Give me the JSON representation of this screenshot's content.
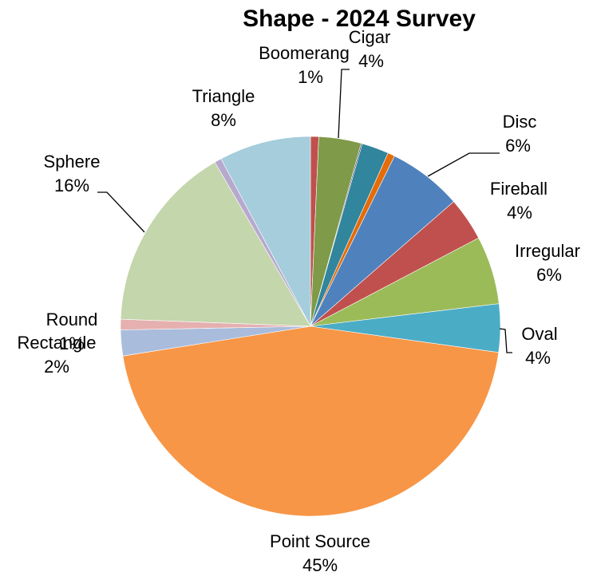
{
  "chart_data": {
    "type": "pie",
    "title": "Shape - 2024 Survey",
    "slices": [
      {
        "label": "Boomerang",
        "value": 0.7,
        "pct_label": "1%",
        "color": "#C0504D"
      },
      {
        "label": "Cigar",
        "value": 3.6,
        "pct_label": "4%",
        "color": "#7F9A48"
      },
      {
        "label": "",
        "value": 0.1,
        "pct_label": "",
        "color": "#4A3A5E"
      },
      {
        "label": "",
        "value": 2.3,
        "pct_label": "",
        "color": "#31859C"
      },
      {
        "label": "",
        "value": 0.6,
        "pct_label": "",
        "color": "#E46C0A"
      },
      {
        "label": "Disc",
        "value": 6.3,
        "pct_label": "6%",
        "color": "#4F81BD"
      },
      {
        "label": "Fireball",
        "value": 3.7,
        "pct_label": "4%",
        "color": "#C0504D"
      },
      {
        "label": "Irregular",
        "value": 5.8,
        "pct_label": "6%",
        "color": "#9BBB59"
      },
      {
        "label": "Oval",
        "value": 4.1,
        "pct_label": "4%",
        "color": "#4BACC6"
      },
      {
        "label": "Point Source",
        "value": 45.3,
        "pct_label": "45%",
        "color": "#F79646"
      },
      {
        "label": "Rectangle",
        "value": 2.2,
        "pct_label": "2%",
        "color": "#A9BCDC"
      },
      {
        "label": "Round",
        "value": 0.9,
        "pct_label": "1%",
        "color": "#E6B0B0"
      },
      {
        "label": "Sphere",
        "value": 16.0,
        "pct_label": "16%",
        "color": "#C4D6AB"
      },
      {
        "label": "",
        "value": 0.6,
        "pct_label": "",
        "color": "#B7A9CE"
      },
      {
        "label": "Triangle",
        "value": 7.8,
        "pct_label": "8%",
        "color": "#A5CDDB"
      }
    ]
  }
}
